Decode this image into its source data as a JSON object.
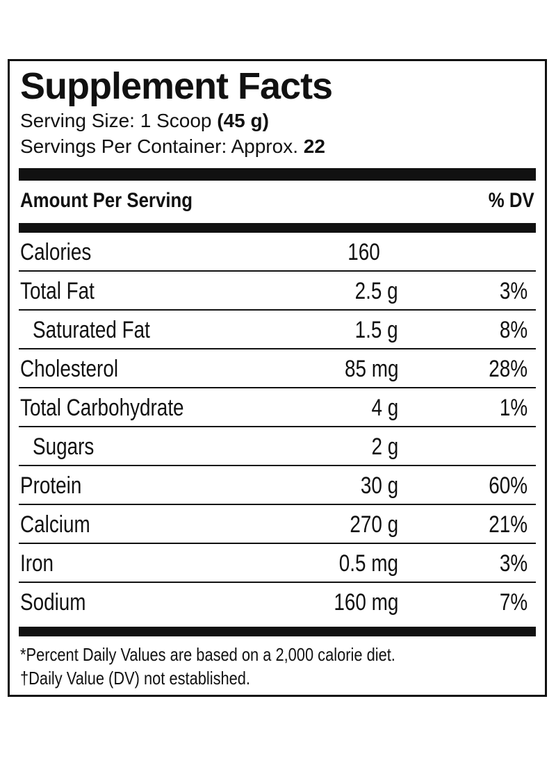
{
  "label": {
    "title": "Supplement Facts",
    "serving_size_label": "Serving Size: 1 Scoop",
    "serving_size_value": "(45 g)",
    "servings_label": "Servings Per Container: Approx.",
    "servings_value": "22",
    "header_amount": "Amount Per Serving",
    "header_dv": "% DV"
  },
  "nutrients": [
    {
      "name": "Calories",
      "amount": "160",
      "dv": ""
    },
    {
      "name": "Total Fat",
      "amount": "2.5 g",
      "dv": "3%"
    },
    {
      "name": "Saturated Fat",
      "amount": "1.5 g",
      "dv": "8%"
    },
    {
      "name": "Cholesterol",
      "amount": "85 mg",
      "dv": "28%"
    },
    {
      "name": "Total Carbohydrate",
      "amount": "4 g",
      "dv": "1%"
    },
    {
      "name": "Sugars",
      "amount": "2 g",
      "dv": ""
    },
    {
      "name": "Protein",
      "amount": "30 g",
      "dv": "60%"
    },
    {
      "name": "Calcium",
      "amount": "270 g",
      "dv": "21%"
    },
    {
      "name": "Iron",
      "amount": "0.5 mg",
      "dv": "3%"
    },
    {
      "name": "Sodium",
      "amount": "160 mg",
      "dv": "7%"
    }
  ],
  "footnotes": {
    "line1": "*Percent Daily Values are based on a 2,000 calorie diet.",
    "line2": "†Daily Value (DV) not established."
  }
}
